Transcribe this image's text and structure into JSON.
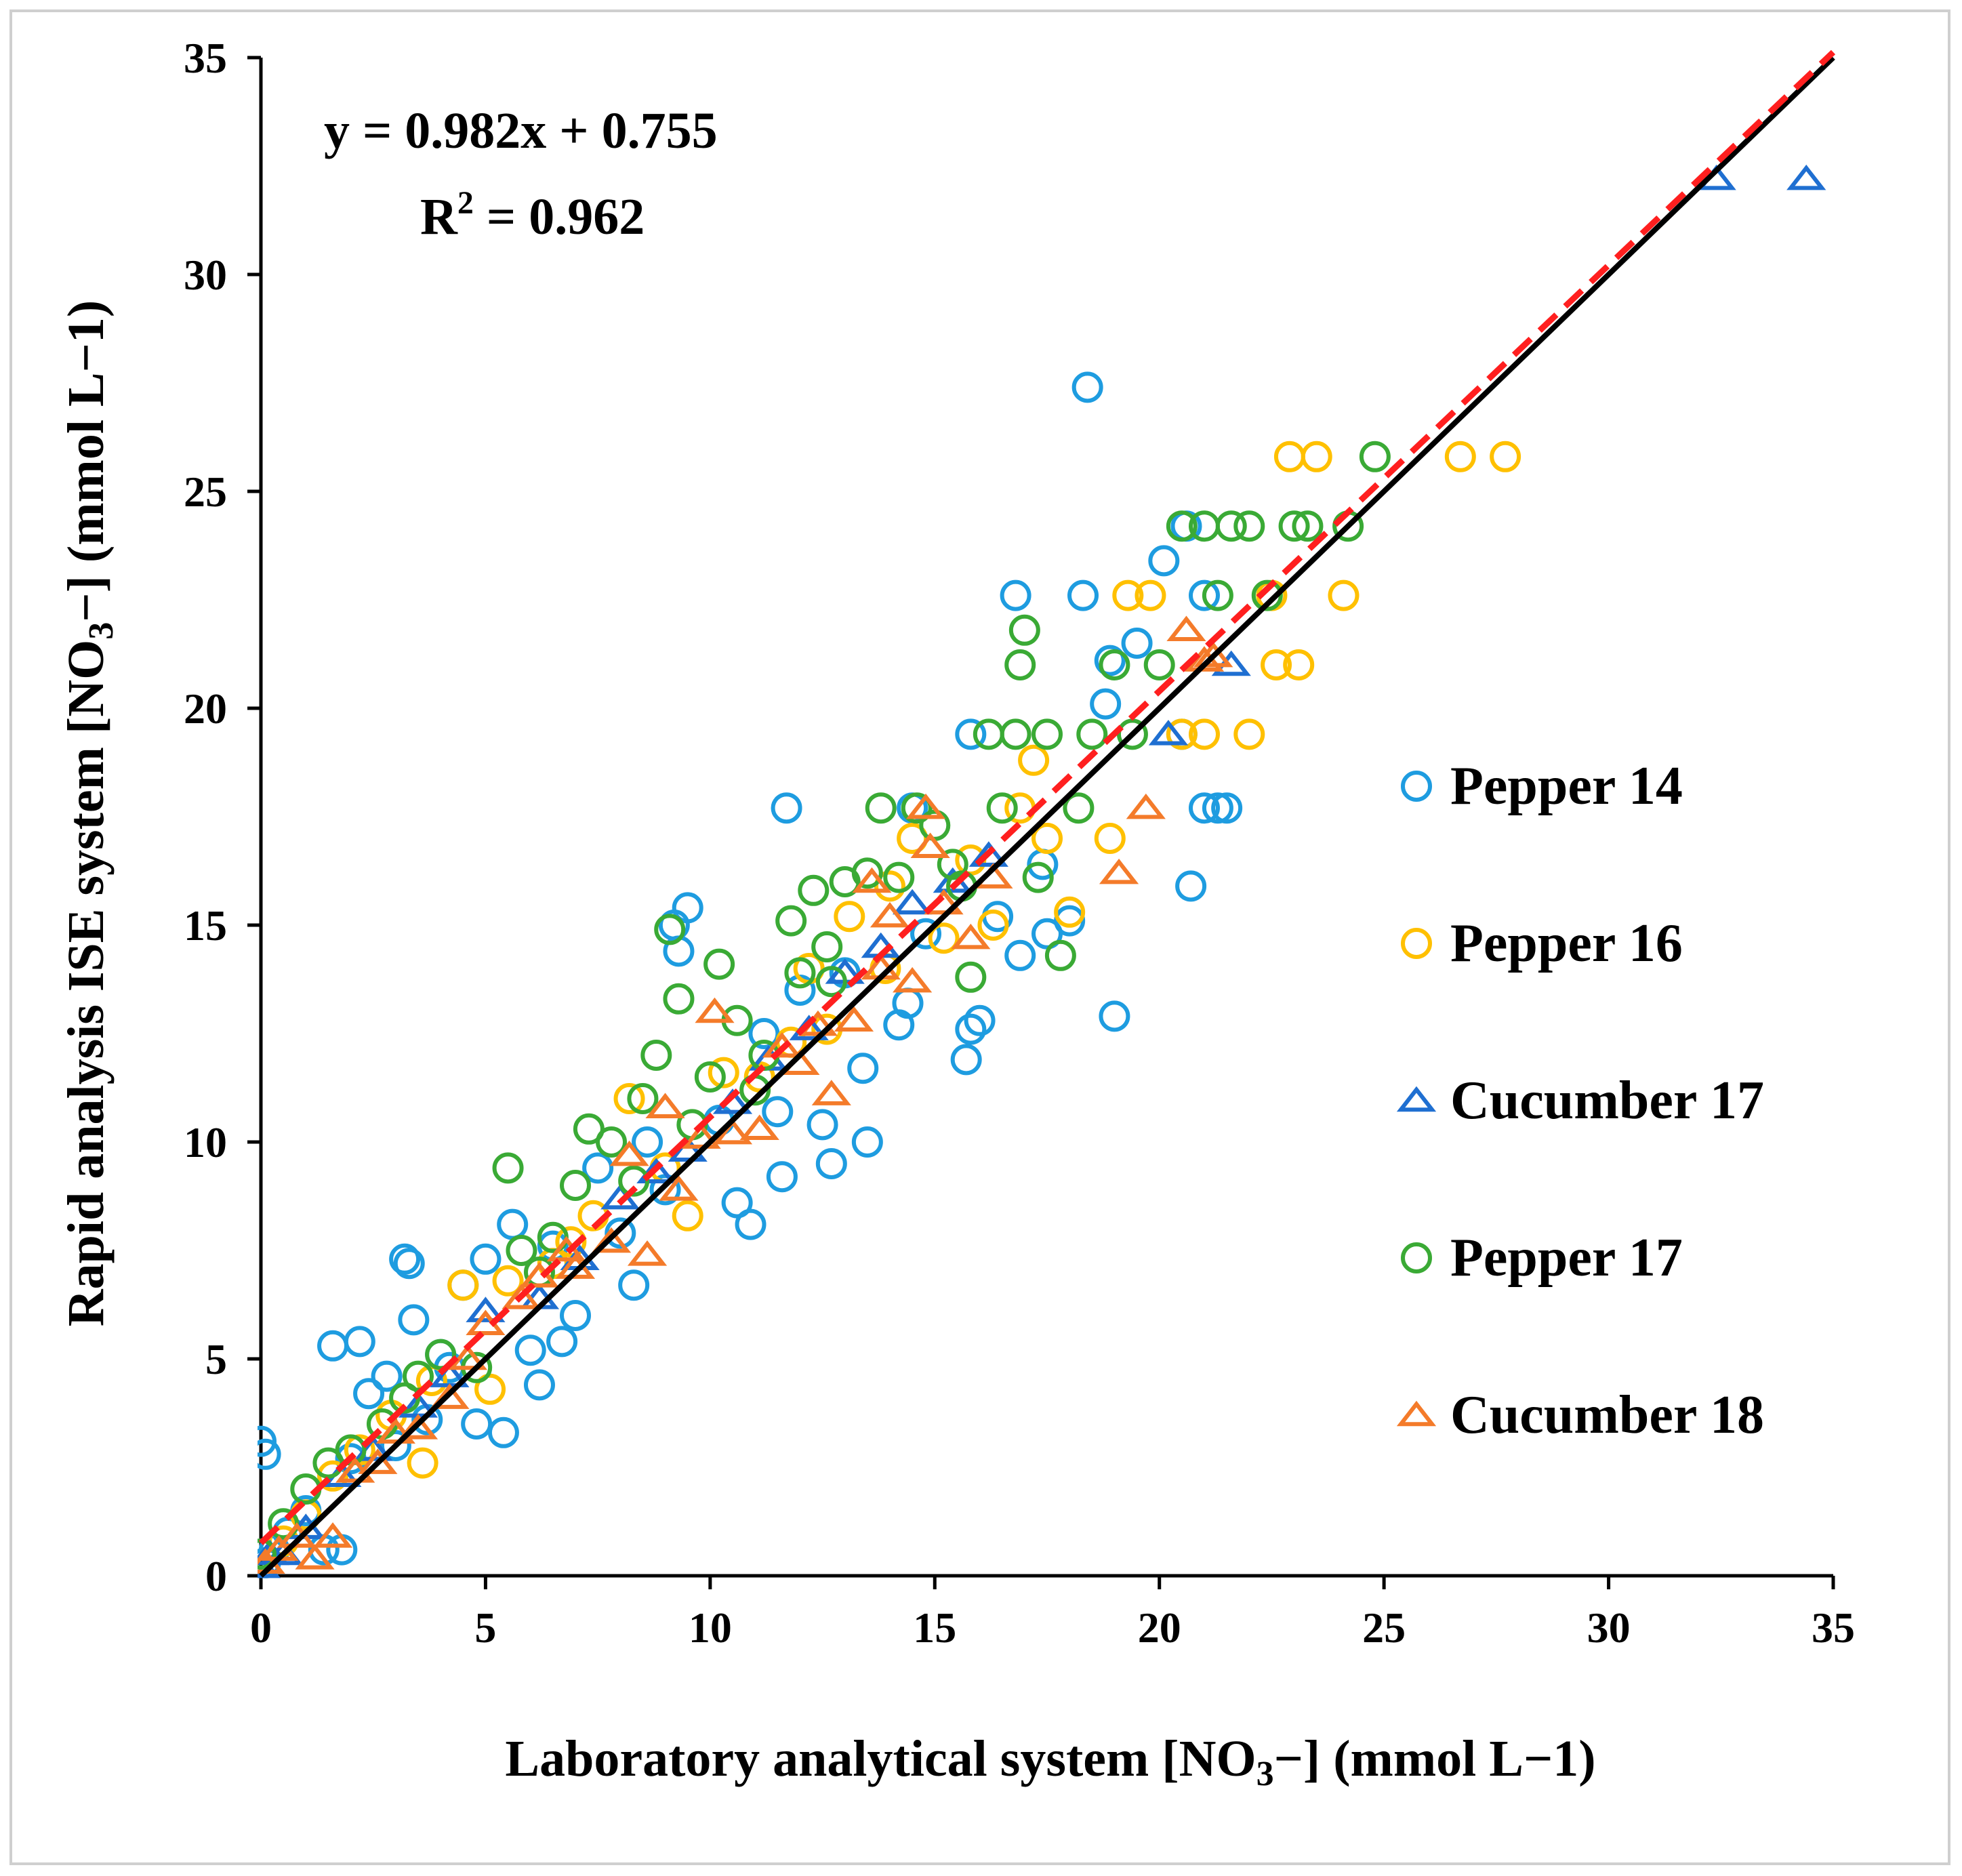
{
  "chart_data": {
    "type": "scatter",
    "title": "",
    "xlabel": "Laboratory analytical system [NO3−] (mmol L−1)",
    "ylabel": "Rapid analysis ISE system [NO3−] (mmol L−1)",
    "xlabel_parts": {
      "pre": "Laboratory analytical system [NO",
      "sub": "3",
      "post": "−] (mmol L−1)"
    },
    "ylabel_parts": {
      "pre": "Rapid analysis ISE system [NO",
      "sub": "3",
      "post": "−] (mmol L−1)"
    },
    "xlim": [
      0,
      35
    ],
    "ylim": [
      0,
      35
    ],
    "xticks": [
      "0",
      "5",
      "10",
      "15",
      "20",
      "25",
      "30",
      "35"
    ],
    "yticks": [
      "0",
      "5",
      "10",
      "15",
      "20",
      "25",
      "30",
      "35"
    ],
    "grid": false,
    "legend_position": "right",
    "annotations": {
      "equation": "y = 0.982x + 0.755",
      "r2_prefix": "R",
      "r2_sup": "2",
      "r2_suffix": " = 0.962"
    },
    "lines": [
      {
        "name": "1:1 line",
        "color": "#000000",
        "style": "solid",
        "points": [
          [
            0,
            0
          ],
          [
            35,
            35
          ]
        ]
      },
      {
        "name": "Regression",
        "color": "#ff1f1f",
        "style": "dashed",
        "points": [
          [
            0,
            0.755
          ],
          [
            35,
            35.125
          ]
        ]
      }
    ],
    "series": [
      {
        "name": "Pepper 14",
        "marker": "circle",
        "color": "#1e9ce0",
        "points": [
          [
            0.0,
            3.1
          ],
          [
            0.1,
            2.8
          ],
          [
            0.1,
            0.3
          ],
          [
            0.3,
            0.6
          ],
          [
            0.6,
            1.0
          ],
          [
            1.0,
            1.5
          ],
          [
            1.4,
            0.6
          ],
          [
            1.8,
            0.6
          ],
          [
            1.6,
            5.3
          ],
          [
            2.2,
            5.4
          ],
          [
            2.4,
            4.2
          ],
          [
            2.8,
            4.6
          ],
          [
            3.2,
            7.3
          ],
          [
            3.3,
            7.2
          ],
          [
            3.4,
            5.9
          ],
          [
            3.0,
            3.0
          ],
          [
            3.7,
            3.6
          ],
          [
            4.0,
            5.1
          ],
          [
            4.5,
            6.7
          ],
          [
            4.8,
            3.5
          ],
          [
            5.4,
            3.3
          ],
          [
            5.0,
            7.3
          ],
          [
            5.6,
            8.1
          ],
          [
            6.0,
            5.2
          ],
          [
            6.2,
            4.4
          ],
          [
            6.7,
            5.4
          ],
          [
            7.0,
            6.0
          ],
          [
            7.5,
            9.4
          ],
          [
            8.0,
            7.9
          ],
          [
            8.3,
            6.7
          ],
          [
            9.0,
            8.9
          ],
          [
            9.2,
            15.0
          ],
          [
            9.3,
            14.4
          ],
          [
            9.5,
            15.4
          ],
          [
            10.2,
            10.5
          ],
          [
            10.6,
            8.6
          ],
          [
            10.9,
            8.1
          ],
          [
            11.5,
            10.7
          ],
          [
            11.6,
            9.2
          ],
          [
            11.7,
            17.7
          ],
          [
            12.0,
            13.5
          ],
          [
            12.5,
            10.4
          ],
          [
            12.7,
            9.5
          ],
          [
            13.4,
            11.7
          ],
          [
            13.5,
            10.0
          ],
          [
            14.2,
            12.7
          ],
          [
            14.4,
            13.2
          ],
          [
            14.8,
            14.8
          ],
          [
            14.5,
            17.7
          ],
          [
            15.8,
            19.4
          ],
          [
            15.8,
            12.6
          ],
          [
            15.7,
            11.9
          ],
          [
            16.0,
            12.8
          ],
          [
            16.9,
            14.3
          ],
          [
            16.8,
            22.6
          ],
          [
            17.5,
            14.8
          ],
          [
            18.0,
            15.1
          ],
          [
            18.3,
            22.6
          ],
          [
            18.4,
            27.4
          ],
          [
            18.8,
            20.1
          ],
          [
            18.9,
            21.1
          ],
          [
            19.0,
            12.9
          ],
          [
            19.5,
            21.5
          ],
          [
            20.1,
            23.4
          ],
          [
            20.6,
            24.2
          ],
          [
            21.0,
            22.6
          ],
          [
            20.7,
            15.9
          ],
          [
            21.0,
            17.7
          ],
          [
            21.3,
            17.7
          ],
          [
            21.5,
            17.7
          ],
          [
            20.5,
            19.4
          ],
          [
            17.4,
            16.4
          ],
          [
            16.4,
            15.2
          ],
          [
            13.0,
            13.9
          ],
          [
            11.2,
            12.5
          ],
          [
            8.6,
            10.0
          ],
          [
            6.5,
            7.6
          ],
          [
            4.2,
            4.8
          ],
          [
            2.0,
            2.7
          ]
        ]
      },
      {
        "name": "Pepper 16",
        "marker": "circle",
        "color": "#ffc000",
        "points": [
          [
            0.5,
            0.8
          ],
          [
            1.0,
            1.4
          ],
          [
            1.6,
            2.3
          ],
          [
            2.2,
            2.9
          ],
          [
            2.9,
            3.7
          ],
          [
            3.6,
            2.6
          ],
          [
            3.8,
            4.5
          ],
          [
            4.5,
            6.7
          ],
          [
            5.1,
            4.3
          ],
          [
            5.5,
            6.8
          ],
          [
            6.5,
            7.2
          ],
          [
            7.4,
            8.3
          ],
          [
            8.2,
            11.0
          ],
          [
            9.0,
            9.4
          ],
          [
            9.5,
            8.3
          ],
          [
            10.3,
            11.6
          ],
          [
            11.1,
            11.5
          ],
          [
            12.2,
            14.0
          ],
          [
            12.6,
            12.6
          ],
          [
            13.1,
            15.2
          ],
          [
            13.9,
            14.0
          ],
          [
            14.5,
            17.0
          ],
          [
            15.2,
            14.7
          ],
          [
            15.8,
            16.5
          ],
          [
            16.3,
            15.0
          ],
          [
            16.9,
            17.7
          ],
          [
            17.5,
            17.0
          ],
          [
            18.0,
            15.3
          ],
          [
            18.9,
            17.0
          ],
          [
            19.3,
            22.6
          ],
          [
            19.8,
            22.6
          ],
          [
            20.5,
            19.4
          ],
          [
            21.0,
            19.4
          ],
          [
            22.0,
            19.4
          ],
          [
            22.5,
            22.6
          ],
          [
            22.6,
            21.0
          ],
          [
            23.1,
            21.0
          ],
          [
            22.9,
            25.8
          ],
          [
            23.5,
            25.8
          ],
          [
            24.1,
            22.6
          ],
          [
            26.7,
            25.8
          ],
          [
            27.7,
            25.8
          ],
          [
            17.2,
            18.8
          ],
          [
            14.0,
            15.9
          ],
          [
            11.8,
            12.3
          ],
          [
            6.9,
            7.7
          ]
        ]
      },
      {
        "name": "Cucumber 17",
        "marker": "triangle",
        "color": "#1f6fd1",
        "points": [
          [
            0.0,
            0.2
          ],
          [
            0.2,
            0.5
          ],
          [
            0.5,
            0.5
          ],
          [
            1.0,
            1.1
          ],
          [
            1.8,
            2.3
          ],
          [
            2.5,
            2.9
          ],
          [
            3.5,
            3.9
          ],
          [
            4.2,
            4.6
          ],
          [
            5.0,
            6.1
          ],
          [
            6.2,
            6.4
          ],
          [
            7.1,
            7.3
          ],
          [
            8.0,
            8.7
          ],
          [
            8.8,
            9.3
          ],
          [
            9.5,
            9.8
          ],
          [
            10.5,
            10.9
          ],
          [
            11.3,
            11.9
          ],
          [
            12.2,
            12.6
          ],
          [
            13.0,
            13.9
          ],
          [
            13.8,
            14.5
          ],
          [
            14.5,
            15.5
          ],
          [
            15.4,
            16.0
          ],
          [
            16.2,
            16.6
          ],
          [
            20.2,
            19.4
          ],
          [
            21.6,
            21.0
          ],
          [
            32.4,
            32.2
          ],
          [
            34.4,
            32.2
          ]
        ]
      },
      {
        "name": "Pepper 17",
        "marker": "circle",
        "color": "#3aaa35",
        "points": [
          [
            0.0,
            0.5
          ],
          [
            0.5,
            1.2
          ],
          [
            1.0,
            2.0
          ],
          [
            1.5,
            2.6
          ],
          [
            2.0,
            2.9
          ],
          [
            2.7,
            3.5
          ],
          [
            3.2,
            4.1
          ],
          [
            4.0,
            5.1
          ],
          [
            4.8,
            4.8
          ],
          [
            5.5,
            9.4
          ],
          [
            5.8,
            7.5
          ],
          [
            6.5,
            7.8
          ],
          [
            7.0,
            9.0
          ],
          [
            7.3,
            10.3
          ],
          [
            7.8,
            10.0
          ],
          [
            8.5,
            11.0
          ],
          [
            8.8,
            12.0
          ],
          [
            9.1,
            14.9
          ],
          [
            9.3,
            13.3
          ],
          [
            10.0,
            11.5
          ],
          [
            10.2,
            14.1
          ],
          [
            10.6,
            12.8
          ],
          [
            11.2,
            12.0
          ],
          [
            11.8,
            15.1
          ],
          [
            12.0,
            13.9
          ],
          [
            12.3,
            15.8
          ],
          [
            12.6,
            14.5
          ],
          [
            13.0,
            16.0
          ],
          [
            13.5,
            16.2
          ],
          [
            13.8,
            17.7
          ],
          [
            14.2,
            16.1
          ],
          [
            14.6,
            17.7
          ],
          [
            15.0,
            17.3
          ],
          [
            15.4,
            16.4
          ],
          [
            15.8,
            13.8
          ],
          [
            16.2,
            19.4
          ],
          [
            16.5,
            17.7
          ],
          [
            16.8,
            19.4
          ],
          [
            16.9,
            21.0
          ],
          [
            17.0,
            21.8
          ],
          [
            17.5,
            19.4
          ],
          [
            17.8,
            14.3
          ],
          [
            18.2,
            17.7
          ],
          [
            18.5,
            19.4
          ],
          [
            19.0,
            21.0
          ],
          [
            19.4,
            19.4
          ],
          [
            20.0,
            21.0
          ],
          [
            20.5,
            24.2
          ],
          [
            21.0,
            24.2
          ],
          [
            21.3,
            22.6
          ],
          [
            21.6,
            24.2
          ],
          [
            22.0,
            24.2
          ],
          [
            22.4,
            22.6
          ],
          [
            23.0,
            24.2
          ],
          [
            23.3,
            24.2
          ],
          [
            24.2,
            24.2
          ],
          [
            24.8,
            25.8
          ],
          [
            17.3,
            16.1
          ],
          [
            15.6,
            15.9
          ],
          [
            12.7,
            13.7
          ],
          [
            11.0,
            11.2
          ],
          [
            9.6,
            10.4
          ],
          [
            8.3,
            9.1
          ],
          [
            6.2,
            7.0
          ],
          [
            3.5,
            4.6
          ]
        ]
      },
      {
        "name": "Cucumber 18",
        "marker": "triangle",
        "color": "#f47b2a",
        "points": [
          [
            0.1,
            0.3
          ],
          [
            0.4,
            0.6
          ],
          [
            0.8,
            0.9
          ],
          [
            1.2,
            0.4
          ],
          [
            1.6,
            0.9
          ],
          [
            2.1,
            2.4
          ],
          [
            2.6,
            2.6
          ],
          [
            3.0,
            3.3
          ],
          [
            3.5,
            3.4
          ],
          [
            4.2,
            4.1
          ],
          [
            5.0,
            5.8
          ],
          [
            5.8,
            6.4
          ],
          [
            6.2,
            6.9
          ],
          [
            7.0,
            7.1
          ],
          [
            7.8,
            7.7
          ],
          [
            8.2,
            9.7
          ],
          [
            8.6,
            7.4
          ],
          [
            9.0,
            10.8
          ],
          [
            9.3,
            8.9
          ],
          [
            10.1,
            13.0
          ],
          [
            10.5,
            10.2
          ],
          [
            11.1,
            10.3
          ],
          [
            11.6,
            12.2
          ],
          [
            12.0,
            11.8
          ],
          [
            12.7,
            11.1
          ],
          [
            13.2,
            12.8
          ],
          [
            13.6,
            16.0
          ],
          [
            13.8,
            14.0
          ],
          [
            14.0,
            15.2
          ],
          [
            14.5,
            13.7
          ],
          [
            14.8,
            17.7
          ],
          [
            14.9,
            16.8
          ],
          [
            15.2,
            15.5
          ],
          [
            15.8,
            14.7
          ],
          [
            16.3,
            16.1
          ],
          [
            19.1,
            16.2
          ],
          [
            19.7,
            17.7
          ],
          [
            20.6,
            21.8
          ],
          [
            21.0,
            21.1
          ],
          [
            21.2,
            21.2
          ],
          [
            12.4,
            12.7
          ],
          [
            9.8,
            10.1
          ],
          [
            6.8,
            7.5
          ],
          [
            4.6,
            5.0
          ]
        ]
      }
    ]
  }
}
